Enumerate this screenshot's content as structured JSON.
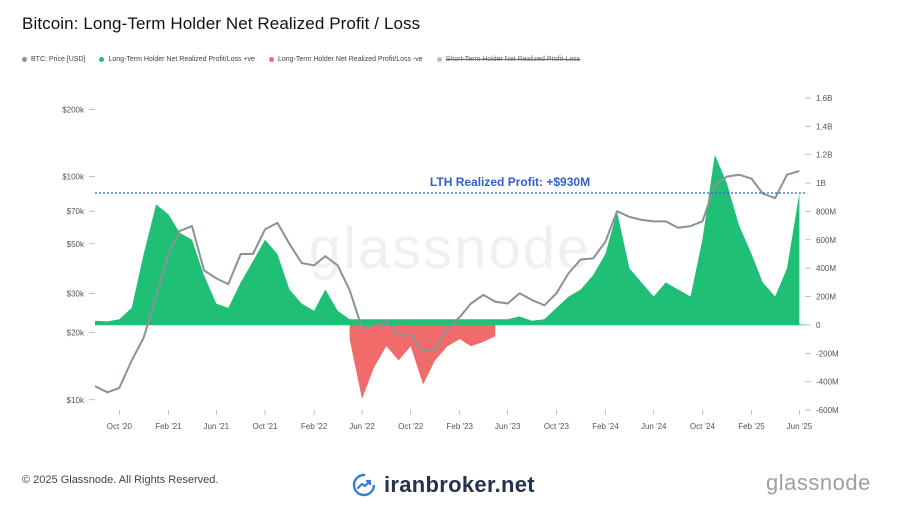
{
  "chart_data": {
    "type": "area",
    "title": "Bitcoin: Long-Term Holder Net Realized Profit / Loss",
    "legend": [
      {
        "label": "BTC: Price [USD]",
        "color": "#8a9199",
        "active": true
      },
      {
        "label": "Long-Term Holder Net Realized Profit/Loss +ve",
        "color": "#1fbf75",
        "active": true
      },
      {
        "label": "Long-Term Holder Net Realized Profit/Loss -ve",
        "color": "#f26b6b",
        "active": true
      },
      {
        "label": "Short-Term Holder Net Realized Profit-Loss",
        "color": "#b8bcc2",
        "active": false
      }
    ],
    "x_ticks": [
      "Oct '20",
      "Feb '21",
      "Jun '21",
      "Oct '21",
      "Feb '22",
      "Jun '22",
      "Oct '22",
      "Feb '23",
      "Jun '23",
      "Oct '23",
      "Feb '24",
      "Jun '24",
      "Oct '24",
      "Feb '25",
      "Jun '25"
    ],
    "y_left": {
      "scale": "log",
      "ticks": [
        "$200k",
        "$100k",
        "$70k",
        "$50k",
        "$30k",
        "$20k",
        "$10k"
      ]
    },
    "y_right": {
      "ticks": [
        "1.6B",
        "1.4B",
        "1.2B",
        "1B",
        "800M",
        "600M",
        "400M",
        "200M",
        "0",
        "-200M",
        "-400M",
        "-600M"
      ],
      "range": [
        -600000000,
        1600000000
      ]
    },
    "annotation": {
      "text": "LTH Realized Profit: +$930M",
      "value": 930000000
    },
    "series": [
      {
        "name": "BTC: Price [USD]",
        "x": [
          "2020-08-01",
          "2020-09-01",
          "2020-10-01",
          "2020-11-01",
          "2020-12-01",
          "2021-01-01",
          "2021-02-01",
          "2021-03-01",
          "2021-04-01",
          "2021-05-01",
          "2021-06-01",
          "2021-07-01",
          "2021-08-01",
          "2021-09-01",
          "2021-10-01",
          "2021-11-01",
          "2021-12-01",
          "2022-01-01",
          "2022-02-01",
          "2022-03-01",
          "2022-04-01",
          "2022-05-01",
          "2022-06-01",
          "2022-07-01",
          "2022-08-01",
          "2022-09-01",
          "2022-10-01",
          "2022-11-01",
          "2022-12-01",
          "2023-01-01",
          "2023-02-01",
          "2023-03-01",
          "2023-04-01",
          "2023-05-01",
          "2023-06-01",
          "2023-07-01",
          "2023-08-01",
          "2023-09-01",
          "2023-10-01",
          "2023-11-01",
          "2023-12-01",
          "2024-01-01",
          "2024-02-01",
          "2024-03-01",
          "2024-04-01",
          "2024-05-01",
          "2024-06-01",
          "2024-07-01",
          "2024-08-01",
          "2024-09-01",
          "2024-10-01",
          "2024-11-01",
          "2024-12-01",
          "2025-01-01",
          "2025-02-01",
          "2025-03-01",
          "2025-04-01",
          "2025-05-01",
          "2025-06-01"
        ],
        "y": [
          11500,
          10800,
          11300,
          15000,
          19000,
          29000,
          45000,
          57000,
          60000,
          38000,
          35000,
          33000,
          45000,
          45000,
          58000,
          62000,
          50000,
          41000,
          40000,
          44000,
          40000,
          31000,
          21000,
          21500,
          22500,
          19500,
          19500,
          16500,
          16800,
          21000,
          23500,
          27000,
          29500,
          27500,
          27000,
          30000,
          28000,
          26500,
          30000,
          37000,
          42500,
          43000,
          51000,
          70000,
          66000,
          64000,
          63000,
          63000,
          59000,
          60000,
          63000,
          91000,
          100000,
          102000,
          98000,
          84000,
          80000,
          102000,
          106000
        ]
      },
      {
        "name": "Long-Term Holder Net Realized Profit/Loss +ve",
        "x": [
          "2020-08-01",
          "2020-09-01",
          "2020-10-01",
          "2020-11-01",
          "2020-12-01",
          "2021-01-01",
          "2021-02-01",
          "2021-03-01",
          "2021-04-01",
          "2021-05-01",
          "2021-06-01",
          "2021-07-01",
          "2021-08-01",
          "2021-09-01",
          "2021-10-01",
          "2021-11-01",
          "2021-12-01",
          "2022-01-01",
          "2022-02-01",
          "2022-03-01",
          "2022-04-01",
          "2022-05-01",
          "2023-06-01",
          "2023-07-01",
          "2023-08-01",
          "2023-09-01",
          "2023-10-01",
          "2023-11-01",
          "2023-12-01",
          "2024-01-01",
          "2024-02-01",
          "2024-03-01",
          "2024-04-01",
          "2024-05-01",
          "2024-06-01",
          "2024-07-01",
          "2024-08-01",
          "2024-09-01",
          "2024-10-01",
          "2024-11-01",
          "2024-12-01",
          "2025-01-01",
          "2025-02-01",
          "2025-03-01",
          "2025-04-01",
          "2025-05-01",
          "2025-06-01"
        ],
        "y": [
          30000000,
          25000000,
          40000000,
          120000000,
          500000000,
          850000000,
          780000000,
          650000000,
          600000000,
          350000000,
          150000000,
          120000000,
          300000000,
          450000000,
          600000000,
          500000000,
          250000000,
          150000000,
          100000000,
          250000000,
          100000000,
          40000000,
          40000000,
          60000000,
          30000000,
          40000000,
          120000000,
          200000000,
          250000000,
          350000000,
          500000000,
          800000000,
          400000000,
          300000000,
          200000000,
          300000000,
          250000000,
          200000000,
          600000000,
          1200000000,
          1000000000,
          700000000,
          500000000,
          300000000,
          200000000,
          400000000,
          930000000
        ]
      },
      {
        "name": "Long-Term Holder Net Realized Profit/Loss -ve",
        "x": [
          "2022-05-01",
          "2022-06-01",
          "2022-07-01",
          "2022-08-01",
          "2022-09-01",
          "2022-10-01",
          "2022-11-01",
          "2022-12-01",
          "2023-01-01",
          "2023-02-01",
          "2023-03-01",
          "2023-04-01",
          "2023-05-01"
        ],
        "y": [
          -100000000,
          -520000000,
          -300000000,
          -150000000,
          -250000000,
          -150000000,
          -420000000,
          -250000000,
          -150000000,
          -100000000,
          -150000000,
          -120000000,
          -80000000
        ]
      }
    ]
  },
  "footer": {
    "copyright": "© 2025 Glassnode. All Rights Reserved.",
    "brand": "iranbroker.net",
    "logo": "glassnode",
    "watermark": "glassnode"
  }
}
